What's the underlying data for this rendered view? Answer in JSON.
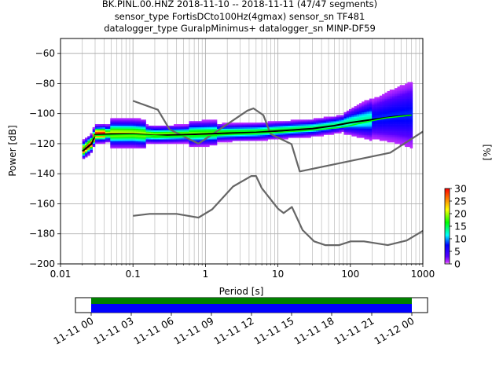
{
  "chart_data": {
    "type": "heatmap",
    "title_lines": [
      "BK.PINL.00.HNZ   2018-11-10 -- 2018-11-11  (47/47 segments)",
      "sensor_type FortisDCto100Hz(4gmax) sensor_sn TF481",
      "datalogger_type GuralpMinimus+ datalogger_sn MINP-DF59"
    ],
    "xlabel": "Period [s]",
    "ylabel": "Power [dB]",
    "xscale": "log",
    "xlim": [
      0.01,
      1000
    ],
    "ylim": [
      -200,
      -50
    ],
    "x_ticks": [
      0.01,
      0.1,
      1,
      10,
      100,
      1000
    ],
    "x_tick_labels": [
      "0.01",
      "0.1",
      "1",
      "10",
      "100",
      "1000"
    ],
    "y_ticks": [
      -200,
      -180,
      -160,
      -140,
      -120,
      -100,
      -80,
      -60
    ],
    "y_tick_labels": [
      "−200",
      "−180",
      "−160",
      "−140",
      "−120",
      "−100",
      "−80",
      "−60"
    ],
    "grid": true,
    "noise_model_high": [
      [
        0.1,
        -91.5
      ],
      [
        0.22,
        -97.4
      ],
      [
        0.32,
        -110.5
      ],
      [
        0.8,
        -120
      ],
      [
        3.8,
        -98
      ],
      [
        4.6,
        -96.5
      ],
      [
        6.3,
        -101
      ],
      [
        7.9,
        -113.5
      ],
      [
        15.4,
        -120.3
      ],
      [
        20,
        -138.5
      ],
      [
        354.8,
        -126
      ],
      [
        1000,
        -112
      ]
    ],
    "noise_model_low": [
      [
        0.1,
        -168
      ],
      [
        0.17,
        -166.7
      ],
      [
        0.4,
        -166.7
      ],
      [
        0.8,
        -169.2
      ],
      [
        1.24,
        -163.7
      ],
      [
        2.4,
        -148.5
      ],
      [
        4.3,
        -141.5
      ],
      [
        5,
        -141.5
      ],
      [
        6,
        -149.6
      ],
      [
        10,
        -163.2
      ],
      [
        12,
        -166.2
      ],
      [
        15.6,
        -162.1
      ],
      [
        21.9,
        -177.5
      ],
      [
        31.6,
        -185
      ],
      [
        45,
        -187.5
      ],
      [
        70,
        -187.5
      ],
      [
        101,
        -185
      ],
      [
        154,
        -185
      ],
      [
        328,
        -187.5
      ],
      [
        600,
        -184.4
      ],
      [
        1000,
        -178
      ]
    ],
    "mode_line": [
      [
        0.02,
        -125
      ],
      [
        0.024,
        -122
      ],
      [
        0.027,
        -120
      ],
      [
        0.03,
        -114
      ],
      [
        0.05,
        -113.5
      ],
      [
        0.1,
        -113.5
      ],
      [
        0.2,
        -114.5
      ],
      [
        0.5,
        -114
      ],
      [
        1,
        -113.5
      ],
      [
        2,
        -113
      ],
      [
        5,
        -112.5
      ],
      [
        10,
        -111.5
      ],
      [
        30,
        -110
      ],
      [
        60,
        -108
      ],
      [
        100,
        -106
      ],
      [
        200,
        -104
      ],
      [
        400,
        -102
      ],
      [
        700,
        -101
      ]
    ],
    "mean_line": [
      [
        0.02,
        -124
      ],
      [
        0.03,
        -114.5
      ],
      [
        0.1,
        -114
      ],
      [
        0.3,
        -115
      ],
      [
        1,
        -114.5
      ],
      [
        3,
        -113.5
      ],
      [
        10,
        -112.5
      ],
      [
        30,
        -111
      ],
      [
        80,
        -109
      ],
      [
        150,
        -106
      ],
      [
        300,
        -103
      ],
      [
        700,
        -101
      ]
    ],
    "colorbar": {
      "label": "[%]",
      "min": 0,
      "max": 30,
      "ticks": [
        0,
        5,
        10,
        15,
        20,
        25,
        30
      ],
      "tick_labels": [
        "0",
        "5",
        "10",
        "15",
        "20",
        "25",
        "30"
      ]
    },
    "coverage": {
      "ticks": [
        "11-11 00",
        "11-11 03",
        "11-11 06",
        "11-11 09",
        "11-11 12",
        "11-11 15",
        "11-11 18",
        "11-11 21",
        "11-12 00"
      ],
      "start_hour": 0,
      "end_hour": 24,
      "colors": [
        "#008000",
        "#0000ff"
      ]
    }
  },
  "colors": {
    "noise_model": "#666666",
    "mode": "#000000",
    "mean": "#00ff00"
  }
}
